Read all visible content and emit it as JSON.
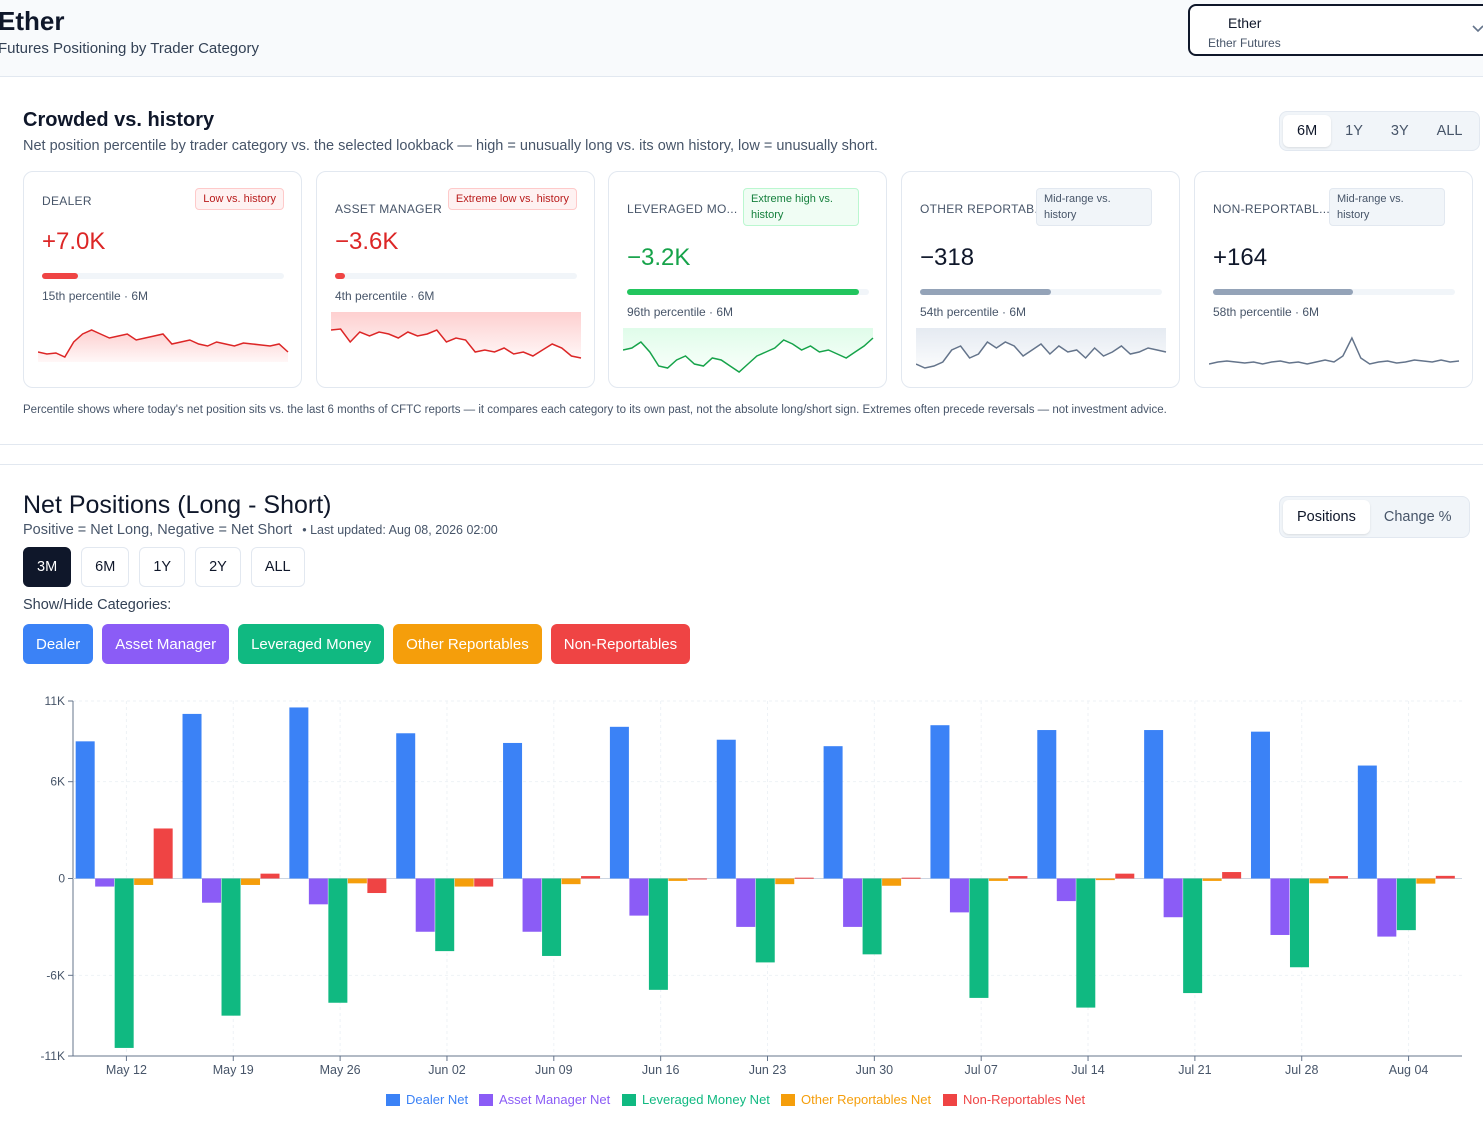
{
  "header": {
    "title": "Ether",
    "subtitle": "Futures Positioning by Trader Category",
    "selector": {
      "main": "Ether",
      "sub": "Ether Futures"
    }
  },
  "crowded": {
    "title": "Crowded vs. history",
    "subtitle": "Net position percentile by trader category vs. the selected lookback — high = unusually long vs. its own history, low = unusually short.",
    "lookback_options": [
      "6M",
      "1Y",
      "3Y",
      "ALL"
    ],
    "lookback_selected": "6M",
    "cards": [
      {
        "label": "DEALER",
        "badge": "Low vs. history",
        "badge_type": "low",
        "value": "+7.0K",
        "value_color": "#dc2626",
        "percentile": 15,
        "percentile_text": "15th percentile · 6M",
        "bar_color": "#ef4444",
        "spark_color": "#dc2626",
        "spark_fill": "#fecaca",
        "spark": [
          40,
          42,
          41,
          45,
          30,
          22,
          18,
          22,
          26,
          24,
          22,
          28,
          26,
          24,
          22,
          32,
          30,
          28,
          32,
          34,
          30,
          32,
          34,
          31,
          32,
          33,
          34,
          32,
          40
        ]
      },
      {
        "label": "ASSET MANAGER",
        "badge": "Extreme low vs. history",
        "badge_type": "low",
        "value": "−3.6K",
        "value_color": "#dc2626",
        "percentile": 4,
        "percentile_text": "4th percentile · 6M",
        "bar_color": "#ef4444",
        "spark_color": "#dc2626",
        "spark_fill": "#fecaca",
        "spark": [
          18,
          17,
          30,
          20,
          24,
          20,
          22,
          26,
          20,
          24,
          22,
          18,
          30,
          26,
          28,
          40,
          38,
          40,
          36,
          42,
          40,
          44,
          38,
          32,
          36,
          44,
          46
        ]
      },
      {
        "label": "LEVERAGED MO...",
        "badge": "Extreme high vs. history",
        "badge_type": "high",
        "value": "−3.2K",
        "value_color": "#16a34a",
        "percentile": 96,
        "percentile_text": "96th percentile · 6M",
        "bar_color": "#22c55e",
        "spark_color": "#16a34a",
        "spark_fill": "#dcfce7",
        "spark": [
          22,
          20,
          14,
          24,
          38,
          40,
          32,
          28,
          36,
          38,
          30,
          32,
          38,
          44,
          36,
          28,
          24,
          20,
          12,
          16,
          22,
          18,
          24,
          22,
          26,
          30,
          24,
          18,
          10
        ]
      },
      {
        "label": "OTHER REPORTAB...",
        "badge": "Mid-range vs. history",
        "badge_type": "mid",
        "value": "−318",
        "value_color": "#0f172a",
        "percentile": 54,
        "percentile_text": "54th percentile · 6M",
        "bar_color": "#94a3b8",
        "spark_color": "#64748b",
        "spark_fill": "#e2e8f0",
        "spark": [
          36,
          40,
          38,
          34,
          22,
          18,
          30,
          26,
          14,
          20,
          14,
          18,
          28,
          22,
          16,
          26,
          18,
          24,
          22,
          30,
          20,
          28,
          24,
          18,
          26,
          24,
          20,
          22,
          24
        ]
      },
      {
        "label": "NON-REPORTABL...",
        "badge": "Mid-range vs. history",
        "badge_type": "mid",
        "value": "+164",
        "value_color": "#0f172a",
        "percentile": 58,
        "percentile_text": "58th percentile · 6M",
        "bar_color": "#94a3b8",
        "spark_color": "#64748b",
        "spark_fill": "#ffffff",
        "spark": [
          36,
          34,
          33,
          34,
          35,
          34,
          36,
          34,
          33,
          35,
          34,
          36,
          34,
          32,
          34,
          28,
          10,
          30,
          36,
          34,
          33,
          35,
          34,
          32,
          33,
          34,
          32,
          34,
          33
        ]
      }
    ],
    "footnote": "Percentile shows where today's net position sits vs. the last 6 months of CFTC reports — it compares each category to its own past, not the absolute long/short sign. Extremes often precede reversals — not investment advice."
  },
  "net": {
    "title": "Net Positions (Long - Short)",
    "subtitle": "Positive = Net Long, Negative = Net Short",
    "updated": "• Last updated: Aug 08, 2026 02:00",
    "mode_options": [
      "Positions",
      "Change %"
    ],
    "mode_selected": "Positions",
    "ranges": [
      "3M",
      "6M",
      "1Y",
      "2Y",
      "ALL"
    ],
    "range_selected": "3M",
    "show_hide_label": "Show/Hide Categories:",
    "categories": [
      {
        "label": "Dealer",
        "color": "#3b82f6"
      },
      {
        "label": "Asset Manager",
        "color": "#8b5cf6"
      },
      {
        "label": "Leveraged Money",
        "color": "#10b981"
      },
      {
        "label": "Other Reportables",
        "color": "#f59e0b"
      },
      {
        "label": "Non-Reportables",
        "color": "#ef4444"
      }
    ]
  },
  "chart_data": {
    "type": "bar",
    "categories": [
      "May 12",
      "May 19",
      "May 26",
      "Jun 02",
      "Jun 09",
      "Jun 16",
      "Jun 23",
      "Jun 30",
      "Jul 07",
      "Jul 14",
      "Jul 21",
      "Jul 28",
      "Aug 04"
    ],
    "ylim": [
      -11000,
      11000
    ],
    "yticks": [
      11000,
      6000,
      0,
      -6000,
      -11000
    ],
    "ytick_labels": [
      "11K",
      "6K",
      "0",
      "-6K",
      "-11K"
    ],
    "grid": true,
    "legend_position": "bottom",
    "series": [
      {
        "name": "Dealer Net",
        "color": "#3b82f6",
        "values": [
          8500,
          10200,
          10600,
          9000,
          8400,
          9400,
          8600,
          8200,
          9500,
          9200,
          9200,
          9100,
          7000
        ]
      },
      {
        "name": "Asset Manager Net",
        "color": "#8b5cf6",
        "values": [
          -500,
          -1500,
          -1600,
          -3300,
          -3300,
          -2300,
          -3000,
          -3000,
          -2100,
          -1400,
          -2400,
          -3500,
          -3600
        ]
      },
      {
        "name": "Leveraged Money Net",
        "color": "#10b981",
        "values": [
          -10500,
          -8500,
          -7700,
          -4500,
          -4800,
          -6900,
          -5200,
          -4700,
          -7400,
          -8000,
          -7100,
          -5500,
          -3200
        ]
      },
      {
        "name": "Other Reportables Net",
        "color": "#f59e0b",
        "values": [
          -400,
          -400,
          -300,
          -500,
          -350,
          -150,
          -350,
          -450,
          -150,
          -100,
          -150,
          -300,
          -318
        ]
      },
      {
        "name": "Non-Reportables Net",
        "color": "#ef4444",
        "values": [
          3100,
          300,
          -900,
          -500,
          150,
          -50,
          50,
          50,
          150,
          300,
          400,
          150,
          164
        ]
      }
    ]
  }
}
